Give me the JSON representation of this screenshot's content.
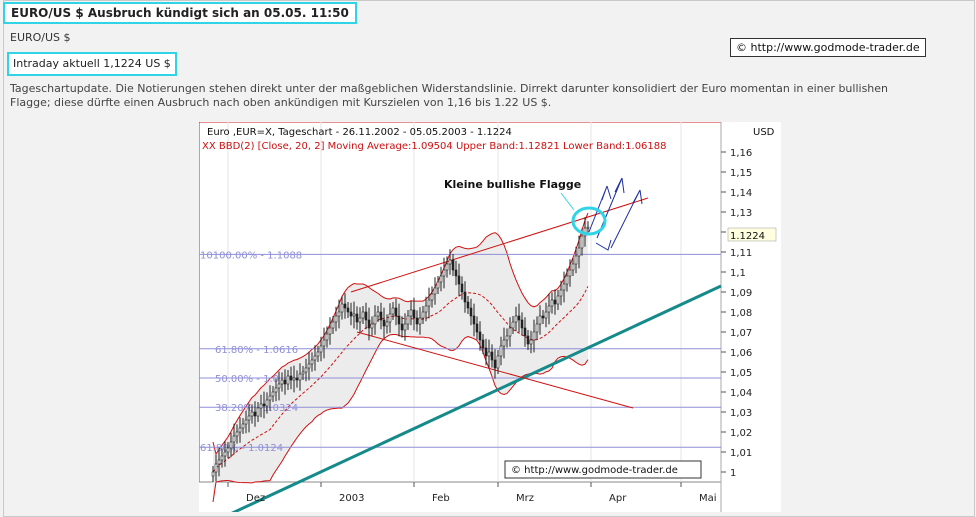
{
  "header": {
    "title": "EURO/US $ Ausbruch kündigt sich an 05.05. 11:50"
  },
  "instrument": "EURO/US $",
  "intraday": "Intraday aktuell 1,1224 US $",
  "copyright": "© http://www.godmode-trader.de",
  "description": "Tageschartupdate. Die Notierungen stehen direkt unter der maßgeblichen Widerstandslinie. Dirrekt darunter konsolidiert der Euro momentan in einer bullishen Flagge; diese dürfte einen Ausbruch nach oben ankündigen mit Kurszielen von 1,16 bis 1.22 US $.",
  "colors": {
    "highlight": "#2fd4e6",
    "bollinger": "#d01010",
    "trendline": "#168a8a",
    "fib": "#8f8fd8",
    "arrows": "#2030a0"
  },
  "chart_data": {
    "type": "candlestick",
    "title": "Euro ,EUR=X, Tageschart - 26.11.2002 - 05.05.2003 - 1.1224",
    "indicator": "XX BBD(2) [Close, 20, 2] Moving Average:1.09504 Upper Band:1.12821 Lower Band:1.06188",
    "currency": "USD",
    "annotation": "Kleine bullishe Flagge",
    "last_value_label": "1.1224",
    "chart_copyright": "© http://www.godmode-trader.de",
    "ylim": [
      0.995,
      1.175
    ],
    "yticks": [
      "1,16",
      "1,15",
      "1,14",
      "1,13",
      "1,12",
      "1,11",
      "1,1",
      "1,09",
      "1,08",
      "1,07",
      "1,06",
      "1,05",
      "1,04",
      "1,03",
      "1,02",
      "1,01",
      "1"
    ],
    "ytick_values": [
      1.16,
      1.15,
      1.14,
      1.13,
      1.12,
      1.11,
      1.1,
      1.09,
      1.08,
      1.07,
      1.06,
      1.05,
      1.04,
      1.03,
      1.02,
      1.01,
      1.0
    ],
    "xticks": [
      "Dez",
      "2003",
      "Feb",
      "Mrz",
      "Apr",
      "Mai"
    ],
    "xtick_days": [
      5,
      36,
      67,
      95,
      126,
      156
    ],
    "fib_levels": [
      {
        "label": "100.00% - 1.1088",
        "prefix": "10",
        "value": 1.1088
      },
      {
        "label": "61.80% - 1.0616",
        "value": 1.0616
      },
      {
        "label": "50.00% - 1.0",
        "value": 1.047
      },
      {
        "label": "38.20% - 1.0324",
        "value": 1.0324
      },
      {
        "label": "61.80% - 1.0124",
        "value": 1.0124
      }
    ],
    "closes": [
      1.0,
      1.004,
      1.006,
      1.008,
      1.01,
      1.012,
      1.015,
      1.018,
      1.02,
      1.022,
      1.024,
      1.026,
      1.028,
      1.03,
      1.028,
      1.032,
      1.034,
      1.033,
      1.036,
      1.038,
      1.04,
      1.042,
      1.044,
      1.046,
      1.044,
      1.048,
      1.046,
      1.047,
      1.046,
      1.049,
      1.05,
      1.052,
      1.054,
      1.056,
      1.058,
      1.06,
      1.063,
      1.066,
      1.069,
      1.072,
      1.075,
      1.078,
      1.08,
      1.084,
      1.082,
      1.08,
      1.078,
      1.079,
      1.075,
      1.077,
      1.08,
      1.076,
      1.072,
      1.074,
      1.078,
      1.08,
      1.076,
      1.073,
      1.075,
      1.079,
      1.082,
      1.078,
      1.074,
      1.071,
      1.074,
      1.078,
      1.081,
      1.077,
      1.074,
      1.077,
      1.08,
      1.083,
      1.086,
      1.089,
      1.092,
      1.095,
      1.098,
      1.101,
      1.104,
      1.106,
      1.101,
      1.098,
      1.094,
      1.09,
      1.085,
      1.082,
      1.078,
      1.074,
      1.07,
      1.066,
      1.062,
      1.058,
      1.06,
      1.056,
      1.052,
      1.058,
      1.063,
      1.066,
      1.068,
      1.072,
      1.075,
      1.078,
      1.076,
      1.072,
      1.068,
      1.064,
      1.066,
      1.07,
      1.074,
      1.078,
      1.077,
      1.08,
      1.083,
      1.086,
      1.084,
      1.088,
      1.091,
      1.094,
      1.098,
      1.101,
      1.104,
      1.108,
      1.112,
      1.118,
      1.122,
      1.1224
    ]
  }
}
